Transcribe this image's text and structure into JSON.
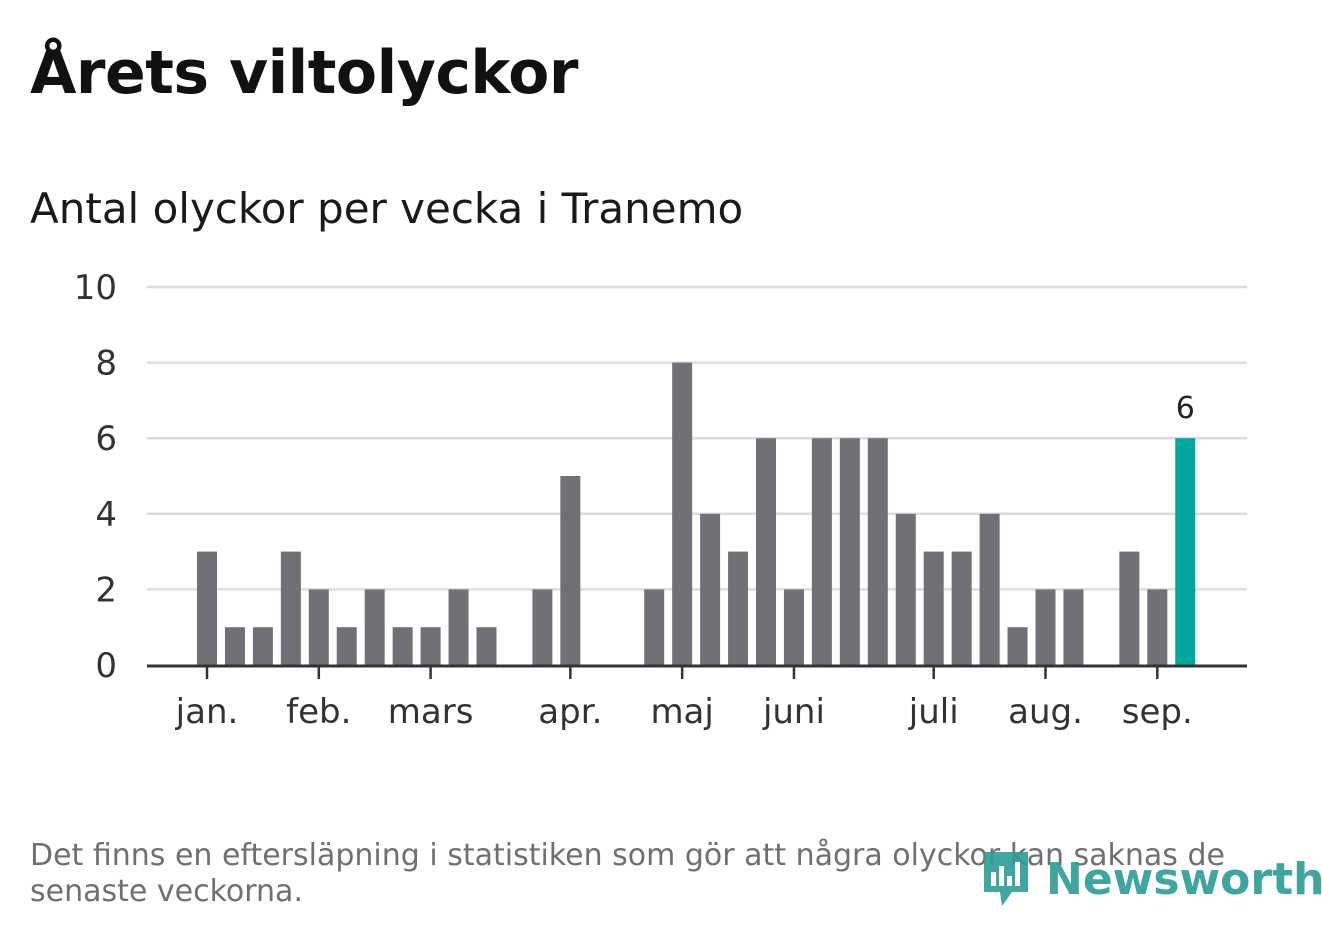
{
  "title": "Årets viltolyckor",
  "subtitle": "Antal olyckor per vecka i Tranemo",
  "footnote": "Det finns en eftersläpning i statistiken som gör att några olyckor kan saknas de senaste veckorna.",
  "logo_text": "Newsworthy",
  "chart_data": {
    "type": "bar",
    "ylim": [
      0,
      10
    ],
    "yticks": [
      "0",
      "2",
      "4",
      "6",
      "8",
      "10"
    ],
    "grid": true,
    "month_labels": [
      "jan.",
      "feb.",
      "mars",
      "apr.",
      "maj",
      "juni",
      "juli",
      "aug.",
      "sep."
    ],
    "month_week_index": [
      0,
      4,
      8,
      13,
      17,
      21,
      26,
      30,
      34
    ],
    "values": [
      3,
      1,
      1,
      3,
      2,
      1,
      2,
      1,
      1,
      2,
      1,
      0,
      2,
      5,
      0,
      0,
      2,
      8,
      4,
      3,
      6,
      2,
      6,
      6,
      6,
      4,
      3,
      3,
      4,
      1,
      2,
      2,
      0,
      3,
      2,
      6
    ],
    "highlight_index": 35,
    "highlight_label": "6",
    "colors": {
      "bar": "#717076",
      "highlight": "#00a79d",
      "grid": "#dddddd",
      "axis": "#333333"
    }
  }
}
